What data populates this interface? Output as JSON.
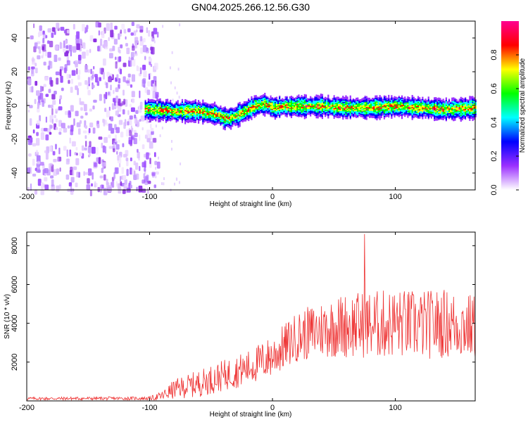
{
  "title": "GN04.2025.266.12.56.G30",
  "chart_data": [
    {
      "type": "heatmap",
      "name": "spectrogram",
      "xlabel": "Height of straight line (km)",
      "ylabel": "Frequency (Hz)",
      "xlim": [
        -200,
        165
      ],
      "ylim": [
        -50,
        50
      ],
      "xticks": [
        "-200",
        "-100",
        "0",
        "100"
      ],
      "yticks": [
        "40",
        "20",
        "0",
        "-20",
        "-40"
      ],
      "colorbar": {
        "label": "Normalized spectral amplitude",
        "range": [
          0,
          1
        ],
        "ticks": [
          "0.0",
          "0.2",
          "0.4",
          "0.6",
          "0.8"
        ],
        "colors": [
          "#ffffff",
          "#9b30ff",
          "#0000ff",
          "#00ffff",
          "#00ff00",
          "#ffff00",
          "#ff0000",
          "#ff0090"
        ]
      },
      "noise_region": {
        "x_from": -200,
        "x_to": -100
      },
      "ridge": {
        "x": [
          -100,
          -80,
          -60,
          -45,
          -40,
          -35,
          -28,
          -20,
          -15,
          -10,
          -5,
          0,
          10,
          20,
          40,
          60,
          80,
          100,
          120,
          140,
          165
        ],
        "freq": [
          -2,
          -3,
          -3,
          -5,
          -7,
          -7,
          -5,
          -2,
          0,
          1,
          1,
          -1,
          0,
          0,
          0,
          -1,
          -1,
          0,
          -1,
          -2,
          -1
        ]
      }
    },
    {
      "type": "line",
      "name": "snr",
      "xlabel": "Height of straight line (km)",
      "ylabel": "SNR (10 * v/v)",
      "xlim": [
        -200,
        165
      ],
      "ylim": [
        0,
        8700
      ],
      "xticks": [
        "-200",
        "-100",
        "0",
        "100"
      ],
      "yticks": [
        "2000",
        "4000",
        "6000",
        "8000"
      ],
      "color": "#ee3333",
      "envelope": {
        "x": [
          -200,
          -100,
          -90,
          -80,
          -60,
          -40,
          -20,
          0,
          20,
          40,
          60,
          80,
          100,
          120,
          140,
          165
        ],
        "mean": [
          120,
          130,
          250,
          600,
          900,
          1300,
          1700,
          2300,
          3300,
          3700,
          3900,
          3900,
          4000,
          3900,
          4000,
          3800
        ],
        "amp": [
          80,
          90,
          250,
          500,
          700,
          800,
          900,
          1100,
          1300,
          1500,
          1700,
          1800,
          1800,
          1800,
          1800,
          1700
        ]
      },
      "peak": {
        "x": 75,
        "y": 8600
      }
    }
  ]
}
